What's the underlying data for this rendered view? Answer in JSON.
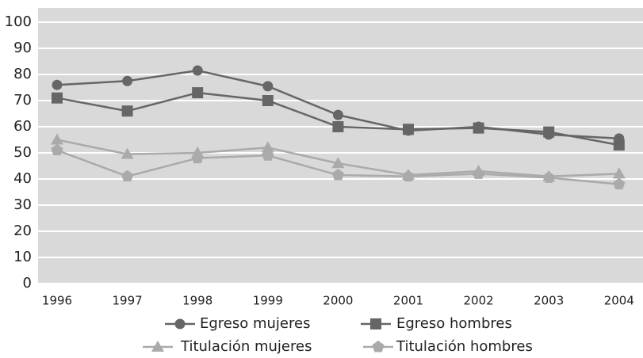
{
  "chart_data": {
    "type": "line",
    "categories": [
      "1996",
      "1997",
      "1998",
      "1999",
      "2000",
      "2001",
      "2002",
      "2003",
      "2004"
    ],
    "series": [
      {
        "name": "Egreso mujeres",
        "color": "#666666",
        "marker": "circle",
        "values": [
          76,
          77.5,
          81.5,
          75.5,
          64.5,
          58.5,
          60,
          57,
          55.5
        ]
      },
      {
        "name": "Egreso hombres",
        "color": "#666666",
        "marker": "square",
        "values": [
          71,
          66,
          73,
          70,
          60,
          59,
          59.5,
          58,
          53
        ]
      },
      {
        "name": "Titulación mujeres",
        "color": "#aaaaaa",
        "marker": "triangle",
        "values": [
          55,
          49.5,
          50,
          52,
          46,
          41.5,
          43,
          41,
          42
        ]
      },
      {
        "name": "Titulación hombres",
        "color": "#aaaaaa",
        "marker": "pentagon",
        "values": [
          51,
          41,
          48,
          49,
          41.5,
          41,
          42,
          40.5,
          38
        ]
      }
    ],
    "ylim": [
      0,
      100
    ],
    "yticks": [
      0,
      10,
      20,
      30,
      40,
      50,
      60,
      70,
      80,
      90,
      100
    ],
    "grid": true
  }
}
